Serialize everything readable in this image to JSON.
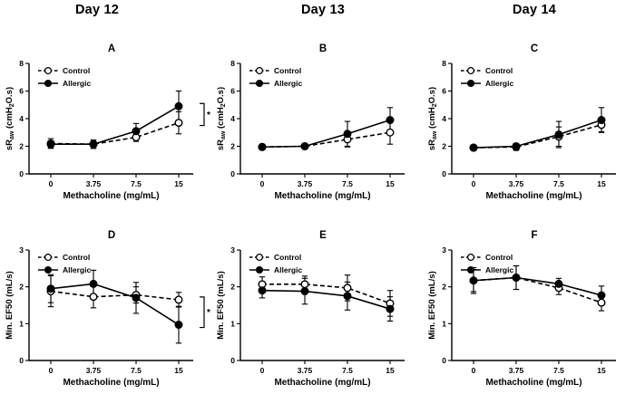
{
  "figure": {
    "columns": [
      "Day 12",
      "Day 13",
      "Day 14"
    ],
    "legend_position": "top-left",
    "grid": false,
    "colors": {
      "foreground": "#000000",
      "background": "#ffffff"
    }
  },
  "chart_data": [
    {
      "type": "line",
      "panel": "A",
      "day": "Day 12",
      "xlabel": "Methacholine (mg/mL)",
      "ylabel": "sRaw (cmH2O.s)",
      "ylabel_parts": [
        {
          "t": "sR"
        },
        {
          "t": "aw",
          "sub": true
        },
        {
          "t": " (cmH"
        },
        {
          "t": "2",
          "sub": true
        },
        {
          "t": "O.s)"
        }
      ],
      "x": [
        0,
        3.75,
        7.5,
        15
      ],
      "x_tick_labels": [
        "0",
        "3.75",
        "7.5",
        "15"
      ],
      "ylim": [
        0,
        8
      ],
      "yticks": [
        0,
        2,
        4,
        6,
        8
      ],
      "series": [
        {
          "name": "Control",
          "marker": "open-circle",
          "line": "dashed",
          "values": [
            2.2,
            2.15,
            2.65,
            3.7
          ],
          "errors": [
            0.35,
            0.3,
            0.3,
            0.8
          ]
        },
        {
          "name": "Allergic",
          "marker": "filled-circle",
          "line": "solid",
          "values": [
            2.15,
            2.15,
            3.1,
            4.9
          ],
          "errors": [
            0.25,
            0.3,
            0.55,
            1.1
          ]
        }
      ],
      "significance": {
        "show": true,
        "label": "*"
      }
    },
    {
      "type": "line",
      "panel": "B",
      "day": "Day 13",
      "xlabel": "Methacholine (mg/mL)",
      "ylabel": "sRaw (cmH2O.s)",
      "ylabel_parts": [
        {
          "t": "sR"
        },
        {
          "t": "aw",
          "sub": true
        },
        {
          "t": " (cmH"
        },
        {
          "t": "2",
          "sub": true
        },
        {
          "t": "O.s)"
        }
      ],
      "x": [
        0,
        3.75,
        7.5,
        15
      ],
      "x_tick_labels": [
        "0",
        "3.75",
        "7.5",
        "15"
      ],
      "ylim": [
        0,
        8
      ],
      "yticks": [
        0,
        2,
        4,
        6,
        8
      ],
      "series": [
        {
          "name": "Control",
          "marker": "open-circle",
          "line": "dashed",
          "values": [
            1.95,
            2.0,
            2.5,
            3.0
          ],
          "errors": [
            0.2,
            0.2,
            0.55,
            0.85
          ]
        },
        {
          "name": "Allergic",
          "marker": "filled-circle",
          "line": "solid",
          "values": [
            1.95,
            2.0,
            2.9,
            3.9
          ],
          "errors": [
            0.15,
            0.15,
            0.9,
            0.9
          ]
        }
      ],
      "significance": {
        "show": false,
        "label": ""
      }
    },
    {
      "type": "line",
      "panel": "C",
      "day": "Day 14",
      "xlabel": "Methacholine (mg/mL)",
      "ylabel": "sRaw (cmH2O.s)",
      "ylabel_parts": [
        {
          "t": "sR"
        },
        {
          "t": "aw",
          "sub": true
        },
        {
          "t": " (cmH"
        },
        {
          "t": "2",
          "sub": true
        },
        {
          "t": "O.s)"
        }
      ],
      "x": [
        0,
        3.75,
        7.5,
        15
      ],
      "x_tick_labels": [
        "0",
        "3.75",
        "7.5",
        "15"
      ],
      "ylim": [
        0,
        8
      ],
      "yticks": [
        0,
        2,
        4,
        6,
        8
      ],
      "series": [
        {
          "name": "Control",
          "marker": "open-circle",
          "line": "dashed",
          "values": [
            1.9,
            1.95,
            2.7,
            3.55
          ],
          "errors": [
            0.2,
            0.25,
            0.7,
            0.5
          ]
        },
        {
          "name": "Allergic",
          "marker": "filled-circle",
          "line": "solid",
          "values": [
            1.9,
            2.0,
            2.85,
            3.9
          ],
          "errors": [
            0.15,
            0.2,
            0.95,
            0.9
          ]
        }
      ],
      "significance": {
        "show": false,
        "label": ""
      }
    },
    {
      "type": "line",
      "panel": "D",
      "day": "Day 12",
      "xlabel": "Methacholine (mg/mL)",
      "ylabel": "Min. EF50 (mL/s)",
      "ylabel_parts": [
        {
          "t": "Min. EF50 (mL/s)"
        }
      ],
      "x": [
        0,
        3.75,
        7.5,
        15
      ],
      "x_tick_labels": [
        "0",
        "3.75",
        "7.5",
        "15"
      ],
      "ylim": [
        0,
        3
      ],
      "yticks": [
        0,
        1,
        2,
        3
      ],
      "series": [
        {
          "name": "Control",
          "marker": "open-circle",
          "line": "dashed",
          "values": [
            1.88,
            1.73,
            1.78,
            1.65
          ],
          "errors": [
            0.42,
            0.3,
            0.22,
            0.2
          ]
        },
        {
          "name": "Allergic",
          "marker": "filled-circle",
          "line": "solid",
          "values": [
            1.95,
            2.08,
            1.7,
            0.97
          ],
          "errors": [
            0.38,
            0.37,
            0.42,
            0.5
          ]
        }
      ],
      "significance": {
        "show": true,
        "label": "*"
      }
    },
    {
      "type": "line",
      "panel": "E",
      "day": "Day 13",
      "xlabel": "Methacholine (mg/mL)",
      "ylabel": "Min. EF50 (mL/s)",
      "ylabel_parts": [
        {
          "t": "Min. EF50 (mL/s)"
        }
      ],
      "x": [
        0,
        3.75,
        7.5,
        15
      ],
      "x_tick_labels": [
        "0",
        "3.75",
        "7.5",
        "15"
      ],
      "ylim": [
        0,
        3
      ],
      "yticks": [
        0,
        1,
        2,
        3
      ],
      "series": [
        {
          "name": "Control",
          "marker": "open-circle",
          "line": "dashed",
          "values": [
            2.07,
            2.07,
            1.97,
            1.55
          ],
          "errors": [
            0.2,
            0.22,
            0.35,
            0.35
          ]
        },
        {
          "name": "Allergic",
          "marker": "filled-circle",
          "line": "solid",
          "values": [
            1.9,
            1.88,
            1.75,
            1.4
          ],
          "errors": [
            0.2,
            0.35,
            0.38,
            0.33
          ]
        }
      ],
      "significance": {
        "show": false,
        "label": ""
      }
    },
    {
      "type": "line",
      "panel": "F",
      "day": "Day 14",
      "xlabel": "Methacholine (mg/mL)",
      "ylabel": "Min. EF50 (mL/s)",
      "ylabel_parts": [
        {
          "t": "Min. EF50 (mL/s)"
        }
      ],
      "x": [
        0,
        3.75,
        7.5,
        15
      ],
      "x_tick_labels": [
        "0",
        "3.75",
        "7.5",
        "15"
      ],
      "ylim": [
        0,
        3
      ],
      "yticks": [
        0,
        1,
        2,
        3
      ],
      "series": [
        {
          "name": "Control",
          "marker": "open-circle",
          "line": "dashed",
          "values": [
            2.17,
            2.25,
            1.97,
            1.57
          ],
          "errors": [
            0.35,
            0.32,
            0.18,
            0.22
          ]
        },
        {
          "name": "Allergic",
          "marker": "filled-circle",
          "line": "solid",
          "values": [
            2.17,
            2.25,
            2.08,
            1.77
          ],
          "errors": [
            0.3,
            0.32,
            0.15,
            0.25
          ]
        }
      ],
      "significance": {
        "show": false,
        "label": ""
      }
    }
  ]
}
